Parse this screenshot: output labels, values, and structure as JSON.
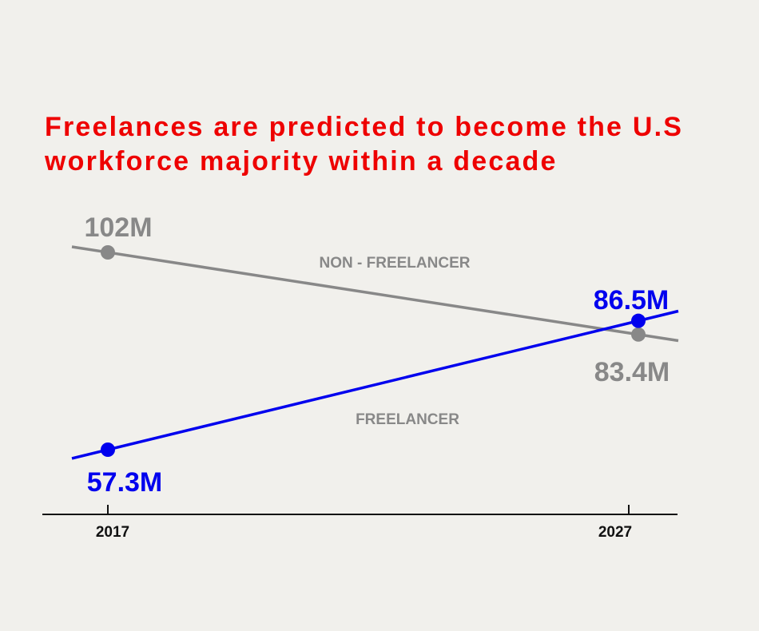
{
  "chart_data": {
    "type": "line",
    "title": "Freelances are predicted to become the U.S workforce majority within a decade",
    "x": [
      "2017",
      "2027"
    ],
    "series": [
      {
        "name": "NON - FREELANCER",
        "values": [
          102,
          83.4
        ],
        "value_labels": [
          "102M",
          "83.4M"
        ],
        "color": "#888888"
      },
      {
        "name": "FREELANCER",
        "values": [
          57.3,
          86.5
        ],
        "value_labels": [
          "57.3M",
          "86.5M"
        ],
        "color": "#0000ee"
      }
    ],
    "xlabel": "",
    "ylabel": "",
    "grid": false,
    "title_color": "#ee0000",
    "axis_color": "#111111"
  }
}
